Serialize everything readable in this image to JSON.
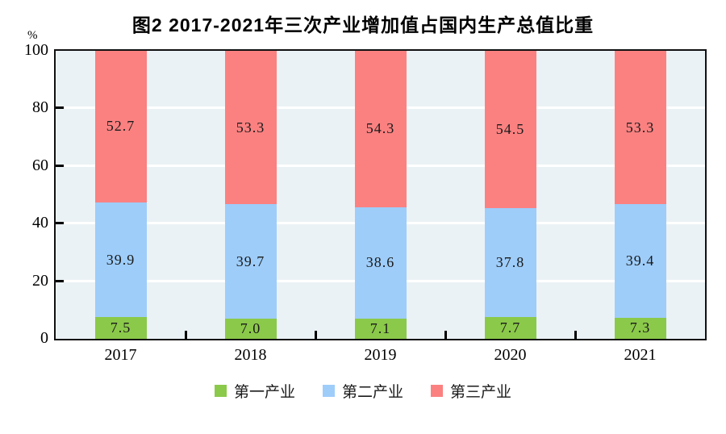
{
  "title": "图2  2017-2021年三次产业增加值占国内生产总值比重",
  "y_axis": {
    "unit_label": "%",
    "ticks": [
      0,
      20,
      40,
      60,
      80,
      100
    ]
  },
  "legend": [
    {
      "label": "第一产业",
      "color": "#8bc94a"
    },
    {
      "label": "第二产业",
      "color": "#9ecdfa"
    },
    {
      "label": "第三产业",
      "color": "#fb8181"
    }
  ],
  "colors": {
    "plot_background": "#ebf2f5",
    "gridline": "#ffffff",
    "axis": "#111111"
  },
  "chart_data": {
    "type": "bar",
    "stacked": true,
    "title": "图2  2017-2021年三次产业增加值占国内生产总值比重",
    "ylabel": "%",
    "ylim": [
      0,
      100
    ],
    "grid": true,
    "legend_position": "bottom",
    "categories": [
      "2017",
      "2018",
      "2019",
      "2020",
      "2021"
    ],
    "series": [
      {
        "name": "第一产业",
        "color": "#8bc94a",
        "values": [
          7.5,
          7.0,
          7.1,
          7.7,
          7.3
        ]
      },
      {
        "name": "第二产业",
        "color": "#9ecdfa",
        "values": [
          39.9,
          39.7,
          38.6,
          37.8,
          39.4
        ]
      },
      {
        "name": "第三产业",
        "color": "#fb8181",
        "values": [
          52.7,
          53.3,
          54.3,
          54.5,
          53.3
        ]
      }
    ]
  }
}
